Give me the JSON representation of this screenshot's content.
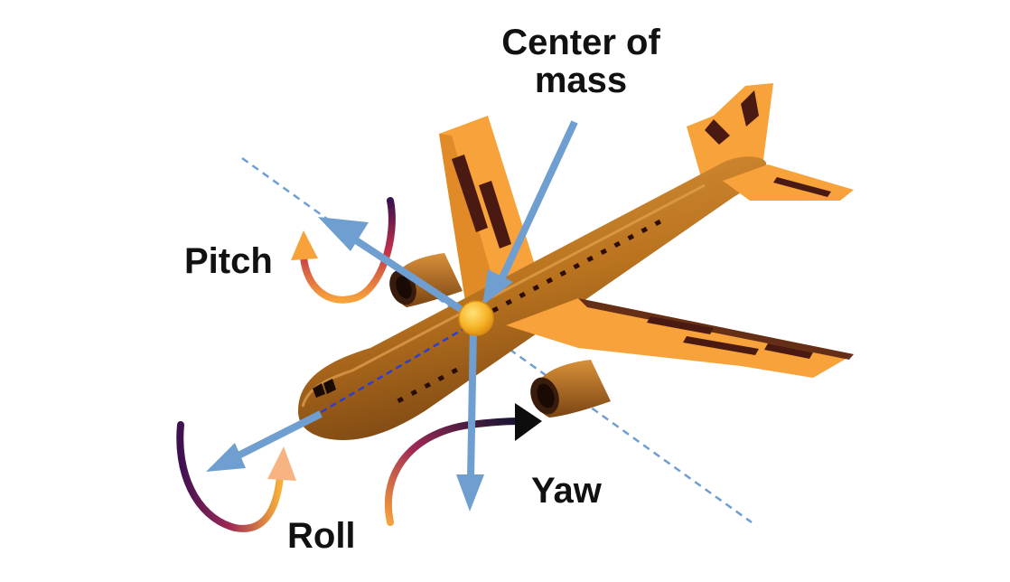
{
  "labels": {
    "center_line1": "Center of",
    "center_line2": "mass",
    "pitch": "Pitch",
    "roll": "Roll",
    "yaw": "Yaw"
  },
  "colors": {
    "axis_blue": "#6f9fd0",
    "fuselage": "#c07a2a",
    "wing_orange": "#f7a23a",
    "stripe_dark": "#4a1a12",
    "center_of_mass": "#f7b529",
    "rotation_dark": "#3d1050",
    "rotation_mid": "#c0304a",
    "rotation_light": "#f7b03a"
  }
}
